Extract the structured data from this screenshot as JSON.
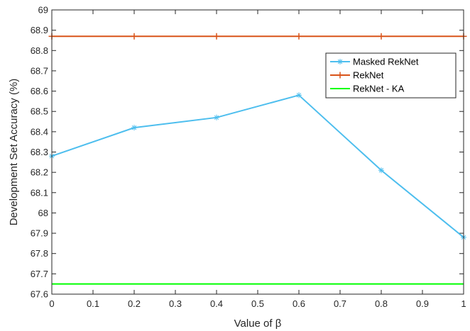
{
  "chart_data": {
    "type": "line",
    "title": "",
    "xlabel": "Value of β",
    "ylabel": "Development Set Accuracy (%)",
    "xlim": [
      0,
      1
    ],
    "ylim": [
      67.6,
      69
    ],
    "x_ticks": [
      "0",
      "0.1",
      "0.2",
      "0.3",
      "0.4",
      "0.5",
      "0.6",
      "0.7",
      "0.8",
      "0.9",
      "1"
    ],
    "y_ticks": [
      "67.6",
      "67.7",
      "67.8",
      "67.9",
      "68",
      "68.1",
      "68.2",
      "68.3",
      "68.4",
      "68.5",
      "68.6",
      "68.7",
      "68.8",
      "68.9",
      "69"
    ],
    "grid": false,
    "legend_position": "top-right",
    "series": [
      {
        "name": "Masked RekNet",
        "color": "#4DBEEE",
        "marker": "asterisk",
        "x": [
          0,
          0.2,
          0.4,
          0.6,
          0.8,
          1.0
        ],
        "values": [
          68.28,
          68.42,
          68.47,
          68.58,
          68.21,
          67.88
        ]
      },
      {
        "name": "RekNet",
        "color": "#D95319",
        "marker": "plus",
        "x": [
          0,
          0.2,
          0.4,
          0.6,
          0.8,
          1.0
        ],
        "values": [
          68.87,
          68.87,
          68.87,
          68.87,
          68.87,
          68.87
        ]
      },
      {
        "name": "RekNet - KA",
        "color": "#00FF00",
        "marker": "none",
        "x": [
          0,
          1.0
        ],
        "values": [
          67.65,
          67.65
        ]
      }
    ]
  }
}
